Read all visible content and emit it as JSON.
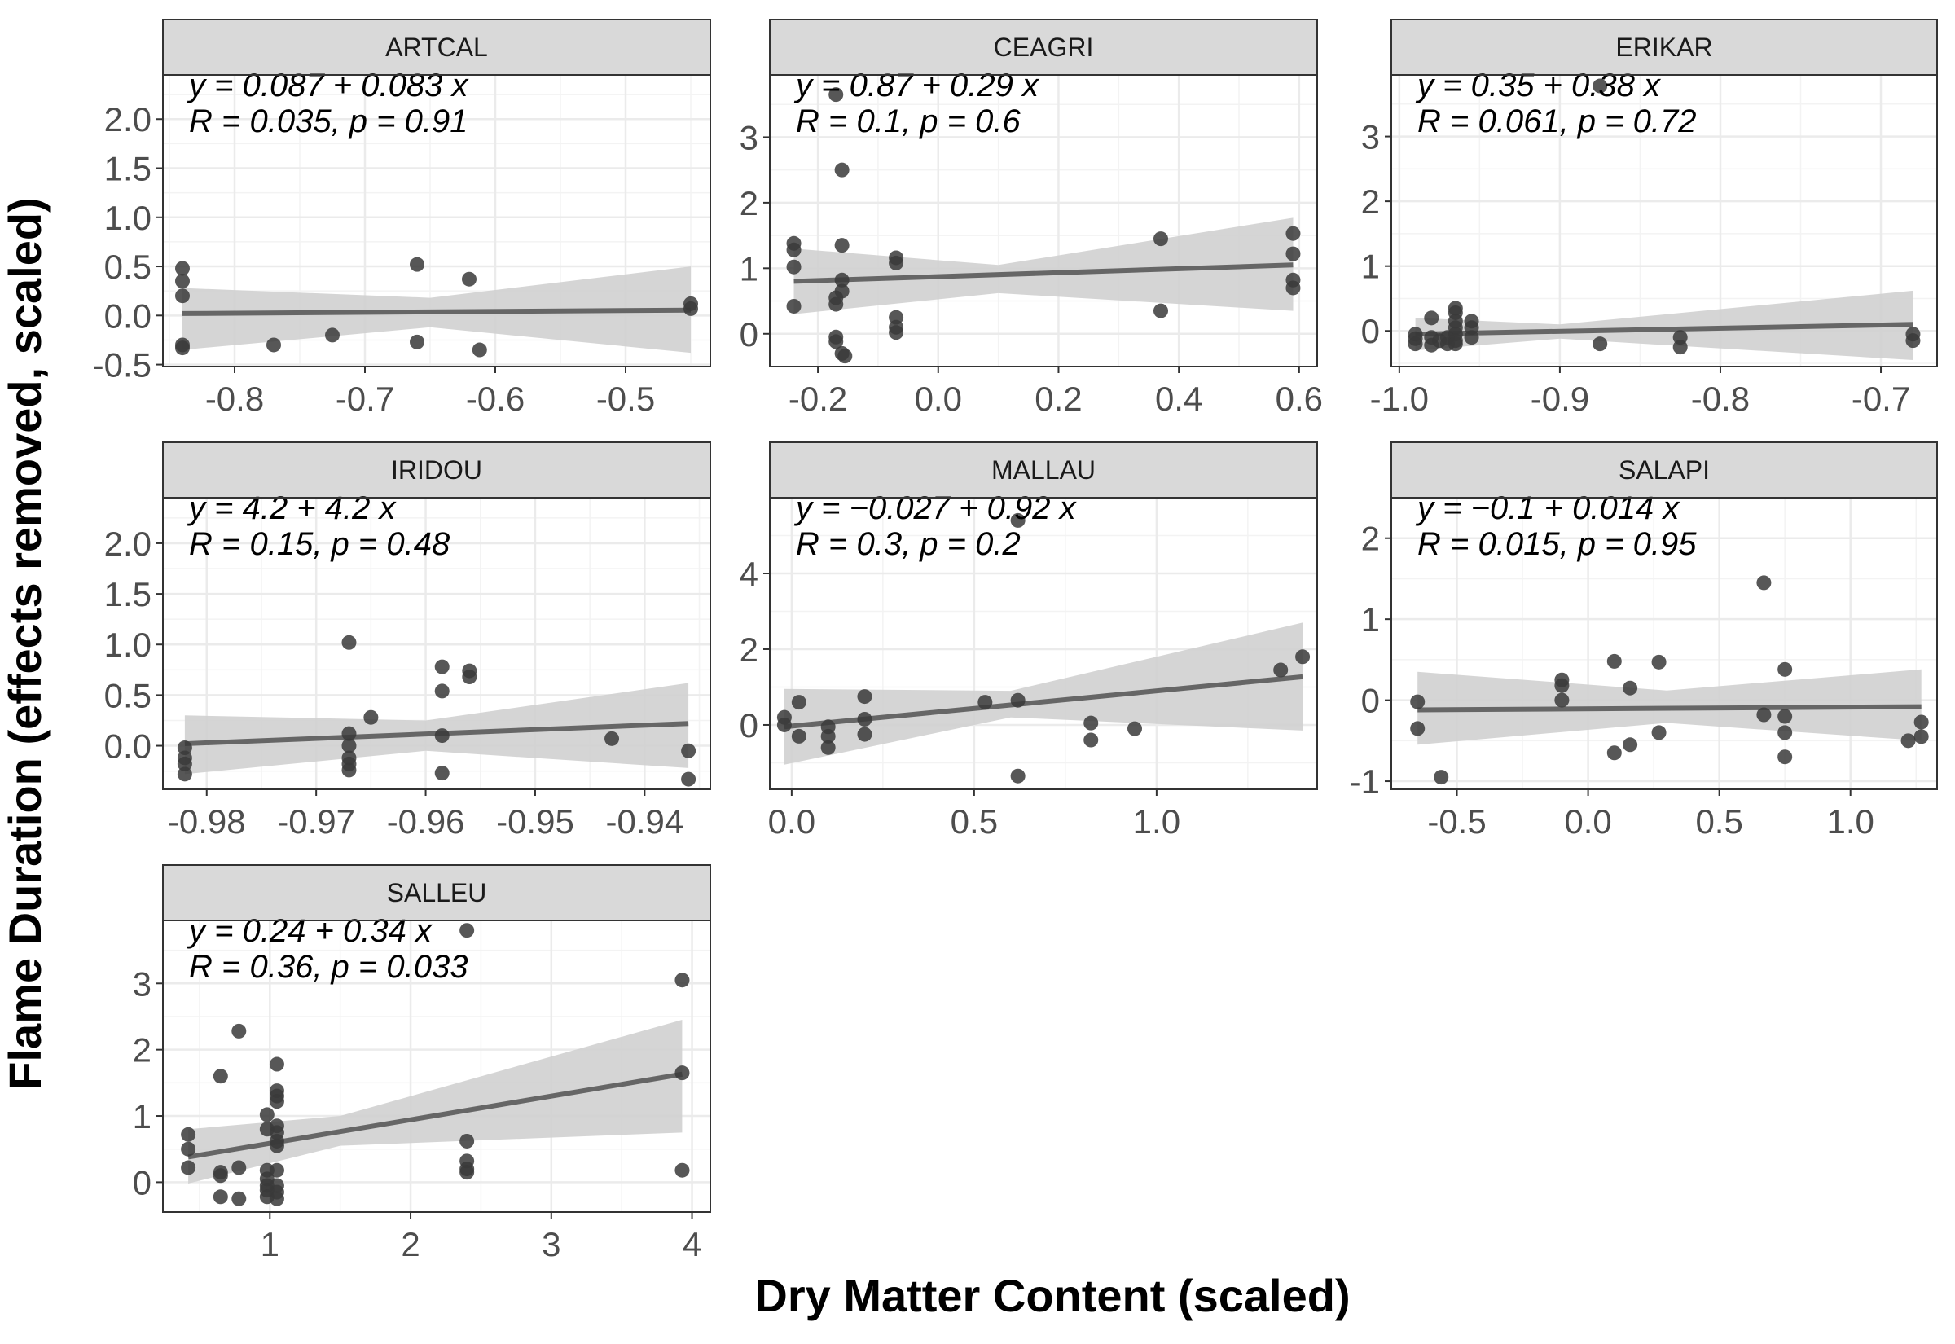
{
  "x_axis_title": "Dry Matter Content (scaled)",
  "y_axis_title": "Flame Duration (effects removed, scaled)",
  "colors": {
    "points": "#3a3a3a",
    "fit_line": "#666666",
    "ribbon": "#d0d0d0",
    "strip_fill": "#d9d9d9",
    "panel_border": "#333333",
    "grid": "#ebebeb"
  },
  "chart_data": [
    {
      "type": "scatter",
      "panel": "ARTCAL",
      "equation_line1": "y = 0.087 + 0.083 x",
      "equation_line2": "R = 0.035, p = 0.91",
      "xlim": [
        -0.855,
        -0.435
      ],
      "ylim": [
        -0.52,
        2.45
      ],
      "xticks": [
        -0.8,
        -0.7,
        -0.6,
        -0.5
      ],
      "xtick_labels": [
        "-0.8",
        "-0.7",
        "-0.6",
        "-0.5"
      ],
      "yticks": [
        -0.5,
        0.0,
        0.5,
        1.0,
        1.5,
        2.0
      ],
      "ytick_labels": [
        "-0.5",
        "0.0",
        "0.5",
        "1.0",
        "1.5",
        "2.0"
      ],
      "fit": {
        "x": [
          -0.84,
          -0.45
        ],
        "y": [
          0.02,
          0.055
        ]
      },
      "ribbon": {
        "x": [
          -0.84,
          -0.65,
          -0.45
        ],
        "lower": [
          -0.35,
          -0.12,
          -0.38
        ],
        "upper": [
          0.28,
          0.18,
          0.5
        ]
      },
      "points": [
        [
          -0.84,
          0.48
        ],
        [
          -0.84,
          0.35
        ],
        [
          -0.84,
          0.2
        ],
        [
          -0.84,
          -0.3
        ],
        [
          -0.84,
          -0.33
        ],
        [
          -0.77,
          -0.3
        ],
        [
          -0.725,
          -0.2
        ],
        [
          -0.66,
          0.52
        ],
        [
          -0.66,
          -0.27
        ],
        [
          -0.62,
          0.37
        ],
        [
          -0.612,
          -0.35
        ],
        [
          -0.45,
          0.12
        ],
        [
          -0.45,
          0.07
        ]
      ]
    },
    {
      "type": "scatter",
      "panel": "CEAGRI",
      "equation_line1": "y = 0.87 + 0.29 x",
      "equation_line2": "R = 0.1, p = 0.6",
      "xlim": [
        -0.28,
        0.63
      ],
      "ylim": [
        -0.5,
        3.95
      ],
      "xticks": [
        -0.2,
        0.0,
        0.2,
        0.4,
        0.6
      ],
      "xtick_labels": [
        "-0.2",
        "0.0",
        "0.2",
        "0.4",
        "0.6"
      ],
      "yticks": [
        0,
        1,
        2,
        3
      ],
      "ytick_labels": [
        "0",
        "1",
        "2",
        "3"
      ],
      "fit": {
        "x": [
          -0.24,
          0.59
        ],
        "y": [
          0.8,
          1.05
        ]
      },
      "ribbon": {
        "x": [
          -0.24,
          0.1,
          0.59
        ],
        "lower": [
          0.3,
          0.62,
          0.35
        ],
        "upper": [
          1.3,
          1.05,
          1.77
        ]
      },
      "points": [
        [
          -0.24,
          1.38
        ],
        [
          -0.24,
          1.28
        ],
        [
          -0.24,
          1.02
        ],
        [
          -0.24,
          0.42
        ],
        [
          -0.17,
          3.65
        ],
        [
          -0.16,
          2.5
        ],
        [
          -0.16,
          1.35
        ],
        [
          -0.16,
          0.82
        ],
        [
          -0.16,
          0.65
        ],
        [
          -0.17,
          0.55
        ],
        [
          -0.17,
          0.45
        ],
        [
          -0.17,
          -0.05
        ],
        [
          -0.17,
          -0.12
        ],
        [
          -0.16,
          -0.3
        ],
        [
          -0.155,
          -0.34
        ],
        [
          -0.07,
          1.16
        ],
        [
          -0.07,
          1.08
        ],
        [
          -0.07,
          0.25
        ],
        [
          -0.07,
          0.1
        ],
        [
          -0.07,
          0.02
        ],
        [
          0.37,
          1.45
        ],
        [
          0.37,
          0.35
        ],
        [
          0.59,
          1.53
        ],
        [
          0.59,
          1.22
        ],
        [
          0.59,
          0.82
        ],
        [
          0.59,
          0.7
        ]
      ]
    },
    {
      "type": "scatter",
      "panel": "ERIKAR",
      "equation_line1": "y = 0.35 + 0.38 x",
      "equation_line2": "R = 0.061, p = 0.72",
      "xlim": [
        -1.005,
        -0.665
      ],
      "ylim": [
        -0.55,
        3.95
      ],
      "xticks": [
        -1.0,
        -0.9,
        -0.8,
        -0.7
      ],
      "xtick_labels": [
        "-1.0",
        "-0.9",
        "-0.8",
        "-0.7"
      ],
      "yticks": [
        0,
        1,
        2,
        3
      ],
      "ytick_labels": [
        "0",
        "1",
        "2",
        "3"
      ],
      "fit": {
        "x": [
          -0.99,
          -0.68
        ],
        "y": [
          -0.05,
          0.1
        ]
      },
      "ribbon": {
        "x": [
          -0.99,
          -0.9,
          -0.68
        ],
        "lower": [
          -0.3,
          -0.12,
          -0.45
        ],
        "upper": [
          0.2,
          0.1,
          0.62
        ]
      },
      "points": [
        [
          -0.99,
          -0.05
        ],
        [
          -0.99,
          -0.12
        ],
        [
          -0.99,
          -0.2
        ],
        [
          -0.98,
          0.2
        ],
        [
          -0.98,
          -0.1
        ],
        [
          -0.98,
          -0.22
        ],
        [
          -0.975,
          -0.15
        ],
        [
          -0.97,
          -0.2
        ],
        [
          -0.97,
          -0.1
        ],
        [
          -0.965,
          0.35
        ],
        [
          -0.965,
          0.28
        ],
        [
          -0.965,
          0.15
        ],
        [
          -0.965,
          0.05
        ],
        [
          -0.965,
          -0.05
        ],
        [
          -0.965,
          -0.15
        ],
        [
          -0.965,
          -0.2
        ],
        [
          -0.955,
          0.15
        ],
        [
          -0.955,
          0.05
        ],
        [
          -0.955,
          -0.1
        ],
        [
          -0.875,
          3.78
        ],
        [
          -0.875,
          -0.2
        ],
        [
          -0.825,
          -0.1
        ],
        [
          -0.825,
          -0.25
        ],
        [
          -0.68,
          -0.05
        ],
        [
          -0.68,
          -0.15
        ]
      ]
    },
    {
      "type": "scatter",
      "panel": "IRIDOU",
      "equation_line1": "y = 4.2 + 4.2 x",
      "equation_line2": "R = 0.15, p = 0.48",
      "xlim": [
        -0.984,
        -0.934
      ],
      "ylim": [
        -0.43,
        2.45
      ],
      "xticks": [
        -0.98,
        -0.97,
        -0.96,
        -0.95,
        -0.94
      ],
      "xtick_labels": [
        "-0.98",
        "-0.97",
        "-0.96",
        "-0.95",
        "-0.94"
      ],
      "yticks": [
        0.0,
        0.5,
        1.0,
        1.5,
        2.0
      ],
      "ytick_labels": [
        "0.0",
        "0.5",
        "1.0",
        "1.5",
        "2.0"
      ],
      "fit": {
        "x": [
          -0.982,
          -0.936
        ],
        "y": [
          0.02,
          0.22
        ]
      },
      "ribbon": {
        "x": [
          -0.982,
          -0.96,
          -0.936
        ],
        "lower": [
          -0.28,
          -0.05,
          -0.22
        ],
        "upper": [
          0.3,
          0.25,
          0.62
        ]
      },
      "points": [
        [
          -0.982,
          -0.02
        ],
        [
          -0.982,
          -0.12
        ],
        [
          -0.982,
          -0.18
        ],
        [
          -0.982,
          -0.28
        ],
        [
          -0.967,
          1.02
        ],
        [
          -0.967,
          0.12
        ],
        [
          -0.967,
          0.0
        ],
        [
          -0.967,
          -0.12
        ],
        [
          -0.967,
          -0.18
        ],
        [
          -0.967,
          -0.24
        ],
        [
          -0.965,
          0.28
        ],
        [
          -0.9585,
          0.78
        ],
        [
          -0.9585,
          0.54
        ],
        [
          -0.9585,
          0.1
        ],
        [
          -0.9585,
          -0.27
        ],
        [
          -0.956,
          0.74
        ],
        [
          -0.956,
          0.68
        ],
        [
          -0.943,
          0.07
        ],
        [
          -0.936,
          -0.05
        ],
        [
          -0.936,
          -0.33
        ]
      ]
    },
    {
      "type": "scatter",
      "panel": "MALLAU",
      "equation_line1": "y = −0.027 + 0.92 x",
      "equation_line2": "R = 0.3, p = 0.2",
      "xlim": [
        -0.06,
        1.44
      ],
      "ylim": [
        -1.7,
        6.0
      ],
      "xticks": [
        0.0,
        0.5,
        1.0
      ],
      "xtick_labels": [
        "0.0",
        "0.5",
        "1.0"
      ],
      "yticks": [
        0,
        2,
        4
      ],
      "ytick_labels": [
        "0",
        "2",
        "4"
      ],
      "fit": {
        "x": [
          -0.02,
          1.4
        ],
        "y": [
          -0.05,
          1.27
        ]
      },
      "ribbon": {
        "x": [
          -0.02,
          0.6,
          1.4
        ],
        "lower": [
          -1.05,
          0.2,
          -0.15
        ],
        "upper": [
          0.95,
          0.9,
          2.7
        ]
      },
      "points": [
        [
          -0.02,
          0.2
        ],
        [
          -0.02,
          0.0
        ],
        [
          0.02,
          0.6
        ],
        [
          0.02,
          -0.3
        ],
        [
          0.1,
          -0.05
        ],
        [
          0.1,
          -0.3
        ],
        [
          0.1,
          -0.6
        ],
        [
          0.2,
          0.75
        ],
        [
          0.2,
          0.15
        ],
        [
          0.2,
          -0.25
        ],
        [
          0.53,
          0.6
        ],
        [
          0.62,
          5.4
        ],
        [
          0.62,
          0.65
        ],
        [
          0.62,
          -1.35
        ],
        [
          0.82,
          0.05
        ],
        [
          0.82,
          -0.4
        ],
        [
          0.94,
          -0.1
        ],
        [
          1.34,
          1.45
        ],
        [
          1.4,
          1.8
        ]
      ]
    },
    {
      "type": "scatter",
      "panel": "SALAPI",
      "equation_line1": "y = −0.1 + 0.014 x",
      "equation_line2": "R = 0.015, p = 0.95",
      "xlim": [
        -0.75,
        1.33
      ],
      "ylim": [
        -1.1,
        2.5
      ],
      "xticks": [
        -0.5,
        0.0,
        0.5,
        1.0
      ],
      "xtick_labels": [
        "-0.5",
        "0.0",
        "0.5",
        "1.0"
      ],
      "yticks": [
        -1,
        0,
        1,
        2
      ],
      "ytick_labels": [
        "-1",
        "0",
        "1",
        "2"
      ],
      "fit": {
        "x": [
          -0.65,
          1.27
        ],
        "y": [
          -0.12,
          -0.08
        ]
      },
      "ribbon": {
        "x": [
          -0.65,
          0.3,
          1.27
        ],
        "lower": [
          -0.55,
          -0.28,
          -0.5
        ],
        "upper": [
          0.35,
          0.12,
          0.38
        ]
      },
      "points": [
        [
          -0.65,
          -0.02
        ],
        [
          -0.65,
          -0.35
        ],
        [
          -0.56,
          -0.95
        ],
        [
          -0.1,
          0.25
        ],
        [
          -0.1,
          0.18
        ],
        [
          -0.1,
          0.0
        ],
        [
          0.1,
          0.48
        ],
        [
          0.1,
          -0.65
        ],
        [
          0.16,
          0.15
        ],
        [
          0.16,
          -0.55
        ],
        [
          0.27,
          0.47
        ],
        [
          0.27,
          -0.4
        ],
        [
          0.67,
          1.45
        ],
        [
          0.67,
          -0.18
        ],
        [
          0.75,
          0.38
        ],
        [
          0.75,
          -0.2
        ],
        [
          0.75,
          -0.4
        ],
        [
          0.75,
          -0.7
        ],
        [
          1.22,
          -0.5
        ],
        [
          1.27,
          -0.27
        ],
        [
          1.27,
          -0.45
        ]
      ]
    },
    {
      "type": "scatter",
      "panel": "SALLEU",
      "equation_line1": "y = 0.24 + 0.34 x",
      "equation_line2": "R = 0.36, p = 0.033",
      "xlim": [
        0.24,
        4.13
      ],
      "ylim": [
        -0.45,
        3.95
      ],
      "xticks": [
        1,
        2,
        3,
        4
      ],
      "xtick_labels": [
        "1",
        "2",
        "3",
        "4"
      ],
      "yticks": [
        0,
        1,
        2,
        3
      ],
      "ytick_labels": [
        "0",
        "1",
        "2",
        "3"
      ],
      "fit": {
        "x": [
          0.42,
          3.93
        ],
        "y": [
          0.38,
          1.63
        ]
      },
      "ribbon": {
        "x": [
          0.42,
          1.5,
          3.93
        ],
        "lower": [
          -0.02,
          0.55,
          0.75
        ],
        "upper": [
          0.8,
          1.0,
          2.45
        ]
      },
      "points": [
        [
          0.42,
          0.72
        ],
        [
          0.42,
          0.5
        ],
        [
          0.42,
          0.22
        ],
        [
          0.65,
          1.6
        ],
        [
          0.65,
          0.15
        ],
        [
          0.65,
          0.1
        ],
        [
          0.65,
          -0.22
        ],
        [
          0.78,
          2.28
        ],
        [
          0.78,
          0.22
        ],
        [
          0.78,
          -0.25
        ],
        [
          0.98,
          1.02
        ],
        [
          0.98,
          0.8
        ],
        [
          0.98,
          0.18
        ],
        [
          0.98,
          0.05
        ],
        [
          0.98,
          -0.05
        ],
        [
          0.98,
          -0.12
        ],
        [
          0.98,
          -0.22
        ],
        [
          1.05,
          1.78
        ],
        [
          1.05,
          1.38
        ],
        [
          1.05,
          1.3
        ],
        [
          1.05,
          1.22
        ],
        [
          1.05,
          0.85
        ],
        [
          1.05,
          0.75
        ],
        [
          1.05,
          0.62
        ],
        [
          1.05,
          0.55
        ],
        [
          1.05,
          0.18
        ],
        [
          1.05,
          -0.05
        ],
        [
          1.05,
          -0.15
        ],
        [
          1.05,
          -0.25
        ],
        [
          2.4,
          3.8
        ],
        [
          2.4,
          0.62
        ],
        [
          2.4,
          0.32
        ],
        [
          2.4,
          0.2
        ],
        [
          2.4,
          0.15
        ],
        [
          3.93,
          3.05
        ],
        [
          3.93,
          1.65
        ],
        [
          3.93,
          0.18
        ]
      ]
    }
  ]
}
